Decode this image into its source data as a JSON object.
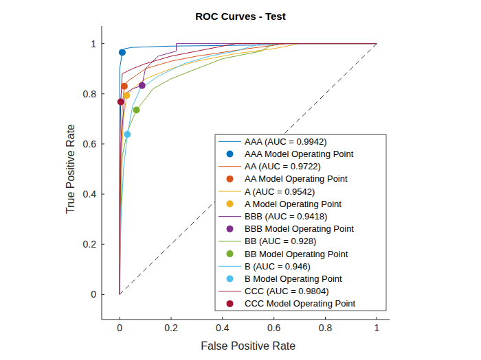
{
  "chart_data": {
    "type": "line",
    "title": "ROC Curves - Test",
    "x_label": "False Positive Rate",
    "y_label": "True Positive Rate",
    "xlim": [
      -0.07,
      1.05
    ],
    "ylim": [
      -0.1,
      1.07
    ],
    "xticks": [
      0,
      0.2,
      0.4,
      0.6,
      0.8,
      1
    ],
    "yticks": [
      0,
      0.2,
      0.4,
      0.6,
      0.8,
      1
    ],
    "grid": false,
    "legend": "southeast",
    "series": [
      {
        "name": "AAA (AUC = 0.9942)",
        "type": "line",
        "line_style": "solid",
        "color": "#0072BD",
        "x": [
          0,
          0,
          0.01,
          0.02,
          0.05,
          0.2,
          0.6,
          0.62,
          1
        ],
        "values": [
          0,
          0.9,
          0.965,
          0.98,
          0.985,
          0.99,
          0.995,
          1,
          1
        ]
      },
      {
        "name": "AAA Model Operating Point",
        "type": "scatter",
        "marker": "o",
        "color": "#0072BD",
        "x": [
          0.01
        ],
        "values": [
          0.965
        ]
      },
      {
        "name": "AA (AUC = 0.9722)",
        "type": "line",
        "line_style": "solid",
        "color": "#D95319",
        "x": [
          0,
          0,
          0.005,
          0.01,
          0.018,
          0.03,
          0.06,
          0.1,
          0.2,
          0.3,
          0.5,
          0.65,
          1
        ],
        "values": [
          0,
          0.4,
          0.6,
          0.75,
          0.83,
          0.85,
          0.87,
          0.9,
          0.93,
          0.95,
          0.98,
          1,
          1
        ]
      },
      {
        "name": "AA Model Operating Point",
        "type": "scatter",
        "marker": "o",
        "color": "#D95319",
        "x": [
          0.018
        ],
        "values": [
          0.83
        ]
      },
      {
        "name": "A (AUC = 0.9542)",
        "type": "line",
        "line_style": "solid",
        "color": "#EDB120",
        "x": [
          0,
          0.005,
          0.015,
          0.027,
          0.05,
          0.1,
          0.2,
          0.3,
          0.45,
          0.6,
          0.7,
          1
        ],
        "values": [
          0,
          0.5,
          0.7,
          0.793,
          0.82,
          0.86,
          0.9,
          0.93,
          0.96,
          0.98,
          1,
          1
        ]
      },
      {
        "name": "A Model Operating Point",
        "type": "scatter",
        "marker": "o",
        "color": "#EDB120",
        "x": [
          0.027
        ],
        "values": [
          0.793
        ]
      },
      {
        "name": "BBB (AUC = 0.9418)",
        "type": "line",
        "line_style": "solid",
        "color": "#7E2F8E",
        "x": [
          0,
          0,
          0.005,
          0.02,
          0.05,
          0.087,
          0.1,
          0.15,
          0.22,
          0.22,
          1
        ],
        "values": [
          0,
          0.1,
          0.6,
          0.8,
          0.82,
          0.833,
          0.9,
          0.95,
          0.97,
          1,
          1
        ]
      },
      {
        "name": "BBB Model Operating Point",
        "type": "scatter",
        "marker": "o",
        "color": "#7E2F8E",
        "x": [
          0.087
        ],
        "values": [
          0.833
        ]
      },
      {
        "name": "BB (AUC = 0.928)",
        "type": "line",
        "line_style": "solid",
        "color": "#77AC30",
        "x": [
          0,
          0,
          0.01,
          0.03,
          0.065,
          0.1,
          0.13,
          0.2,
          0.3,
          0.4,
          0.55,
          0.6,
          1
        ],
        "values": [
          0,
          0.1,
          0.55,
          0.65,
          0.735,
          0.78,
          0.82,
          0.86,
          0.9,
          0.94,
          0.97,
          1,
          1
        ]
      },
      {
        "name": "BB Model Operating Point",
        "type": "scatter",
        "marker": "o",
        "color": "#77AC30",
        "x": [
          0.065
        ],
        "values": [
          0.735
        ]
      },
      {
        "name": "B (AUC = 0.946)",
        "type": "line",
        "line_style": "solid",
        "color": "#4DBEEE",
        "x": [
          0,
          0.005,
          0.015,
          0.03,
          0.05,
          0.08,
          0.15,
          0.25,
          0.35,
          0.45,
          0.55,
          1
        ],
        "values": [
          0,
          0.3,
          0.5,
          0.638,
          0.75,
          0.82,
          0.87,
          0.92,
          0.95,
          0.97,
          1,
          1
        ]
      },
      {
        "name": "B Model Operating Point",
        "type": "scatter",
        "marker": "o",
        "color": "#4DBEEE",
        "x": [
          0.03
        ],
        "values": [
          0.638
        ]
      },
      {
        "name": "CCC (AUC = 0.9804)",
        "type": "line",
        "line_style": "solid",
        "color": "#A2142F",
        "x": [
          0,
          0,
          0.004,
          0.01,
          0.05,
          0.1,
          0.2,
          0.3,
          0.4,
          0.45,
          1
        ],
        "values": [
          0,
          0.5,
          0.768,
          0.88,
          0.9,
          0.92,
          0.95,
          0.97,
          0.99,
          1,
          1
        ]
      },
      {
        "name": "CCC Model Operating Point",
        "type": "scatter",
        "marker": "o",
        "color": "#A2142F",
        "x": [
          0.004
        ],
        "values": [
          0.768
        ]
      }
    ]
  }
}
